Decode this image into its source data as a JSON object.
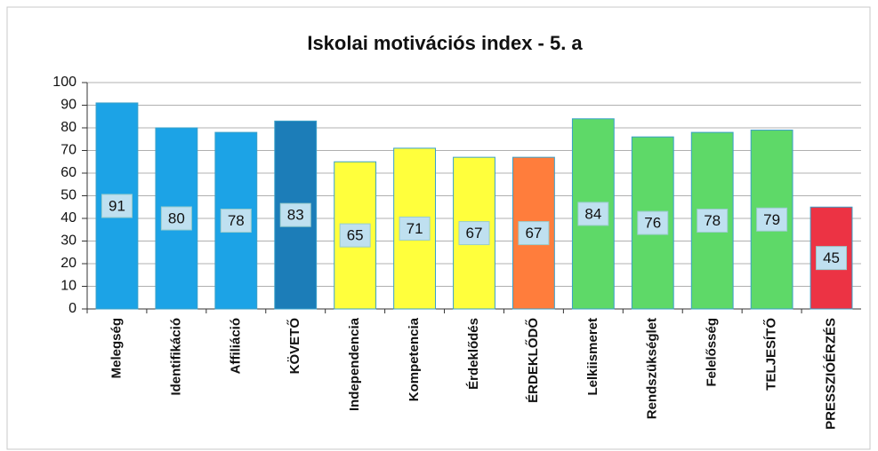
{
  "chart_data": {
    "type": "bar",
    "title": "Iskolai motivációs index - 5. a",
    "categories": [
      "Melegség",
      "Identifikáció",
      "Affiliáció",
      "KÖVETŐ",
      "Independencia",
      "Kompetencia",
      "Érdeklődés",
      "ÉRDEKLŐDŐ",
      "Lelkiismeret",
      "Rendszükséglet",
      "Felelősség",
      "TELJESÍTŐ",
      "PRESSZIÓÉRZÉS"
    ],
    "values": [
      91,
      80,
      78,
      83,
      65,
      71,
      67,
      67,
      84,
      76,
      78,
      79,
      45
    ],
    "colors": [
      "#1ca3e6",
      "#1ca3e6",
      "#1ca3e6",
      "#1c7db8",
      "#ffff3c",
      "#ffff3c",
      "#ffff3c",
      "#ff7d3c",
      "#5ed968",
      "#5ed968",
      "#5ed968",
      "#5ed968",
      "#ec3344"
    ],
    "ylim": [
      0,
      100
    ],
    "yticks": [
      0,
      10,
      20,
      30,
      40,
      50,
      60,
      70,
      80,
      90,
      100
    ],
    "grid": true
  }
}
